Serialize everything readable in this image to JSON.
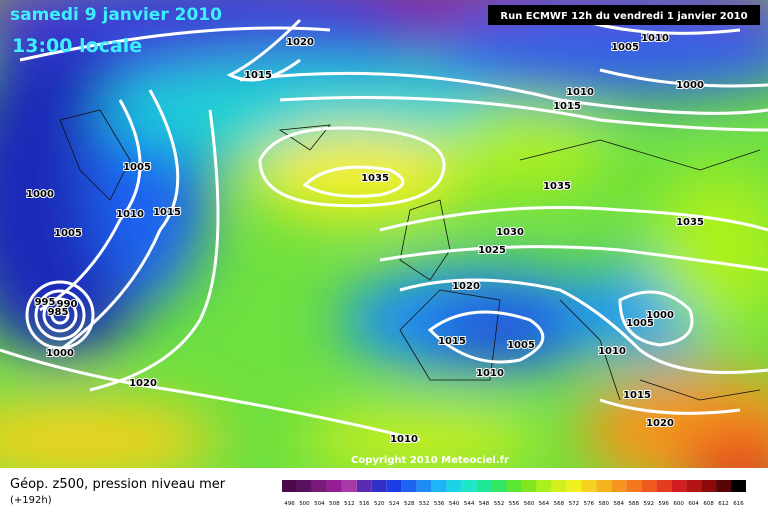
{
  "header": {
    "date": "samedi 9 janvier 2010",
    "time": "13:00 locale",
    "run": "Run ECMWF 12h du vendredi 1 janvier 2010"
  },
  "footer": {
    "title": "Géop. z500, pression niveau mer",
    "lead": "(+192h)",
    "copyright": "Copyright 2010 Meteociel.fr"
  },
  "isobar_labels": [
    1020,
    1005,
    1010,
    1015,
    1000,
    1010,
    1015,
    1005,
    1035,
    1035,
    1000,
    1010,
    1015,
    1035,
    1005,
    1030,
    1025,
    1020,
    995,
    990,
    985,
    1000,
    1005,
    1015,
    1005,
    1010,
    1000,
    1010,
    1020,
    1015,
    1020,
    1010
  ],
  "scale": {
    "values": [
      496,
      500,
      504,
      508,
      512,
      516,
      520,
      524,
      528,
      532,
      536,
      540,
      544,
      548,
      552,
      556,
      560,
      564,
      568,
      572,
      576,
      580,
      584,
      588,
      592,
      596,
      600,
      604,
      608,
      612,
      616
    ],
    "colors": [
      "#4b0a4b",
      "#5a1060",
      "#7a1a7a",
      "#951e95",
      "#a73aa7",
      "#5a2ab0",
      "#3030c8",
      "#1e3ce6",
      "#1e64f0",
      "#1e8cf5",
      "#1eb4f5",
      "#1ed2e6",
      "#1ee6c8",
      "#1ee696",
      "#32e664",
      "#5ae632",
      "#82e61e",
      "#aaf01e",
      "#d2f01e",
      "#f0f01e",
      "#f5d21e",
      "#f5b41e",
      "#f5961e",
      "#f5781e",
      "#f05a1e",
      "#e63c1e",
      "#d21e1e",
      "#b41414",
      "#8c0a0a",
      "#5a0505",
      "#000000"
    ]
  }
}
